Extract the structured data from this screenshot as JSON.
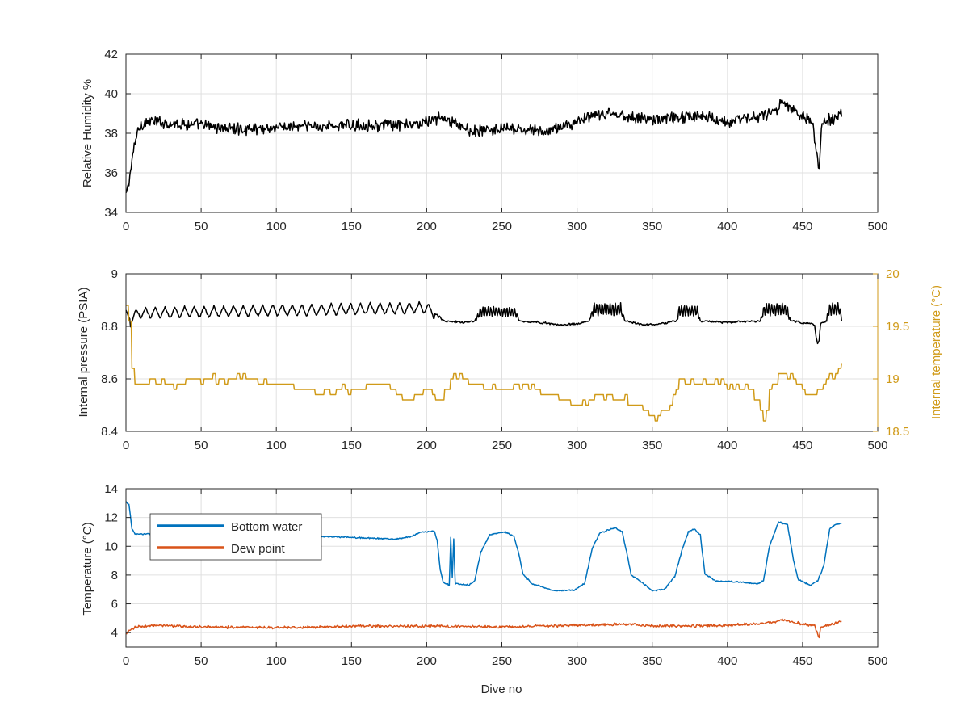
{
  "figure": {
    "background": "#ffffff",
    "grid_color": "#e0e0e0",
    "axis_color": "#262626"
  },
  "chart_data": [
    {
      "type": "line",
      "xlabel": "",
      "ylabel": "Relative Humidity %",
      "xlim": [
        0,
        500
      ],
      "ylim": [
        34,
        42
      ],
      "xticks": [
        "0",
        "50",
        "100",
        "150",
        "200",
        "250",
        "300",
        "350",
        "400",
        "450",
        "500"
      ],
      "yticks": [
        "34",
        "36",
        "38",
        "40",
        "42"
      ],
      "grid": true,
      "series": [
        {
          "color": "#000000",
          "noise": 0.45,
          "anchors": [
            [
              0,
              34.8
            ],
            [
              2,
              35.6
            ],
            [
              4,
              36.5
            ],
            [
              6,
              37.6
            ],
            [
              9,
              38.4
            ],
            [
              15,
              38.6
            ],
            [
              50,
              38.4
            ],
            [
              75,
              38.2
            ],
            [
              100,
              38.3
            ],
            [
              150,
              38.4
            ],
            [
              190,
              38.4
            ],
            [
              205,
              38.7
            ],
            [
              210,
              38.8
            ],
            [
              230,
              38.1
            ],
            [
              250,
              38.2
            ],
            [
              280,
              38.1
            ],
            [
              300,
              38.6
            ],
            [
              320,
              39.0
            ],
            [
              350,
              38.7
            ],
            [
              380,
              38.9
            ],
            [
              400,
              38.6
            ],
            [
              430,
              39.0
            ],
            [
              436,
              39.5
            ],
            [
              450,
              38.9
            ],
            [
              457,
              38.6
            ],
            [
              459,
              37.0
            ],
            [
              461,
              36.3
            ],
            [
              463,
              38.6
            ],
            [
              470,
              38.7
            ],
            [
              476,
              39.1
            ]
          ]
        }
      ]
    },
    {
      "type": "line",
      "xlabel": "",
      "ylabel": "Internal pressure (PSIA)",
      "ylabel_right": "Internal temperature (°C)",
      "xlim": [
        0,
        500
      ],
      "ylim": [
        8.4,
        9.0
      ],
      "ylim_right": [
        18.5,
        20.0
      ],
      "xticks": [
        "0",
        "50",
        "100",
        "150",
        "200",
        "250",
        "300",
        "350",
        "400",
        "450",
        "500"
      ],
      "yticks": [
        "8.4",
        "8.6",
        "8.8",
        "9"
      ],
      "yticks_right": [
        "18.5",
        "19",
        "19.5",
        "20"
      ],
      "grid": true,
      "right_axis_color": "#d09a18",
      "series": [
        {
          "color": "#000000",
          "axis": "left",
          "noise": 0.006,
          "osc": {
            "range": [
              3,
              205
            ],
            "amp": 0.022,
            "period": 6.5
          },
          "bumps": [
            [
              232,
              262,
              0.035
            ],
            [
              308,
              332,
              0.045
            ],
            [
              366,
              382,
              0.04
            ],
            [
              422,
              442,
              0.045
            ],
            [
              466,
              476,
              0.045
            ]
          ],
          "anchors": [
            [
              0,
              8.86
            ],
            [
              3,
              8.82
            ],
            [
              8,
              8.85
            ],
            [
              100,
              8.86
            ],
            [
              200,
              8.87
            ],
            [
              205,
              8.85
            ],
            [
              212,
              8.82
            ],
            [
              225,
              8.815
            ],
            [
              232,
              8.82
            ],
            [
              262,
              8.82
            ],
            [
              275,
              8.815
            ],
            [
              290,
              8.805
            ],
            [
              300,
              8.81
            ],
            [
              308,
              8.82
            ],
            [
              332,
              8.82
            ],
            [
              345,
              8.805
            ],
            [
              358,
              8.81
            ],
            [
              366,
              8.82
            ],
            [
              382,
              8.82
            ],
            [
              400,
              8.815
            ],
            [
              422,
              8.82
            ],
            [
              442,
              8.82
            ],
            [
              455,
              8.81
            ],
            [
              458,
              8.805
            ],
            [
              459,
              8.76
            ],
            [
              460,
              8.73
            ],
            [
              461,
              8.75
            ],
            [
              462,
              8.81
            ],
            [
              466,
              8.82
            ],
            [
              476,
              8.82
            ]
          ]
        },
        {
          "color": "#d09a18",
          "axis": "right",
          "noise": 0.06,
          "step": 1,
          "anchors": [
            [
              0,
              19.68
            ],
            [
              2,
              19.55
            ],
            [
              3,
              19.25
            ],
            [
              5,
              19.0
            ],
            [
              7,
              18.9
            ],
            [
              10,
              18.97
            ],
            [
              30,
              18.95
            ],
            [
              40,
              18.97
            ],
            [
              55,
              19.0
            ],
            [
              75,
              19.02
            ],
            [
              90,
              18.98
            ],
            [
              100,
              18.97
            ],
            [
              115,
              18.9
            ],
            [
              130,
              18.87
            ],
            [
              150,
              18.9
            ],
            [
              170,
              18.95
            ],
            [
              188,
              18.8
            ],
            [
              200,
              18.92
            ],
            [
              210,
              18.8
            ],
            [
              218,
              19.05
            ],
            [
              225,
              18.97
            ],
            [
              250,
              18.92
            ],
            [
              270,
              18.92
            ],
            [
              285,
              18.83
            ],
            [
              300,
              18.75
            ],
            [
              320,
              18.85
            ],
            [
              340,
              18.75
            ],
            [
              352,
              18.63
            ],
            [
              360,
              18.7
            ],
            [
              368,
              18.97
            ],
            [
              380,
              18.98
            ],
            [
              395,
              18.98
            ],
            [
              405,
              18.9
            ],
            [
              415,
              18.92
            ],
            [
              420,
              18.8
            ],
            [
              424,
              18.6
            ],
            [
              428,
              18.9
            ],
            [
              435,
              19.05
            ],
            [
              445,
              19.0
            ],
            [
              452,
              18.85
            ],
            [
              460,
              18.9
            ],
            [
              465,
              19.02
            ],
            [
              470,
              19.05
            ],
            [
              476,
              19.12
            ]
          ]
        }
      ]
    },
    {
      "type": "line",
      "xlabel": "Dive no",
      "ylabel": "Temperature (°C)",
      "xlim": [
        0,
        500
      ],
      "ylim": [
        3,
        14
      ],
      "xticks": [
        "0",
        "50",
        "100",
        "150",
        "200",
        "250",
        "300",
        "350",
        "400",
        "450",
        "500"
      ],
      "yticks": [
        "4",
        "6",
        "8",
        "10",
        "12",
        "14"
      ],
      "grid": true,
      "legend": {
        "position": "top-left"
      },
      "series": [
        {
          "name": "Bottom water",
          "color": "#0072bd",
          "noise": 0.07,
          "anchors": [
            [
              0,
              13.1
            ],
            [
              2,
              12.9
            ],
            [
              4,
              11.2
            ],
            [
              6,
              10.85
            ],
            [
              20,
              10.85
            ],
            [
              60,
              10.8
            ],
            [
              100,
              10.75
            ],
            [
              140,
              10.65
            ],
            [
              180,
              10.5
            ],
            [
              190,
              10.7
            ],
            [
              197,
              11.0
            ],
            [
              205,
              11.05
            ],
            [
              207,
              10.4
            ],
            [
              209,
              8.4
            ],
            [
              211,
              7.5
            ],
            [
              215,
              7.3
            ],
            [
              216,
              10.6
            ],
            [
              217,
              7.8
            ],
            [
              218,
              10.5
            ],
            [
              219,
              7.4
            ],
            [
              228,
              7.3
            ],
            [
              232,
              7.6
            ],
            [
              236,
              9.6
            ],
            [
              242,
              10.8
            ],
            [
              252,
              11.0
            ],
            [
              258,
              10.7
            ],
            [
              261,
              9.6
            ],
            [
              264,
              8.1
            ],
            [
              270,
              7.4
            ],
            [
              285,
              6.9
            ],
            [
              298,
              6.95
            ],
            [
              305,
              7.4
            ],
            [
              310,
              9.8
            ],
            [
              315,
              10.9
            ],
            [
              325,
              11.3
            ],
            [
              330,
              11.0
            ],
            [
              333,
              9.6
            ],
            [
              336,
              8.0
            ],
            [
              343,
              7.5
            ],
            [
              350,
              6.9
            ],
            [
              358,
              7.0
            ],
            [
              365,
              7.9
            ],
            [
              370,
              9.8
            ],
            [
              374,
              11.0
            ],
            [
              378,
              11.2
            ],
            [
              382,
              10.8
            ],
            [
              385,
              8.1
            ],
            [
              392,
              7.6
            ],
            [
              410,
              7.5
            ],
            [
              420,
              7.4
            ],
            [
              424,
              7.6
            ],
            [
              428,
              10.0
            ],
            [
              434,
              11.7
            ],
            [
              440,
              11.5
            ],
            [
              444,
              9.0
            ],
            [
              447,
              7.7
            ],
            [
              455,
              7.3
            ],
            [
              460,
              7.6
            ],
            [
              464,
              8.6
            ],
            [
              468,
              11.2
            ],
            [
              472,
              11.5
            ],
            [
              476,
              11.6
            ]
          ]
        },
        {
          "name": "Dew point",
          "color": "#d95319",
          "noise": 0.14,
          "anchors": [
            [
              0,
              3.9
            ],
            [
              2,
              4.1
            ],
            [
              6,
              4.4
            ],
            [
              20,
              4.5
            ],
            [
              50,
              4.4
            ],
            [
              100,
              4.35
            ],
            [
              150,
              4.45
            ],
            [
              200,
              4.45
            ],
            [
              250,
              4.4
            ],
            [
              300,
              4.5
            ],
            [
              330,
              4.6
            ],
            [
              350,
              4.45
            ],
            [
              400,
              4.5
            ],
            [
              430,
              4.7
            ],
            [
              436,
              4.9
            ],
            [
              450,
              4.6
            ],
            [
              458,
              4.5
            ],
            [
              460,
              3.9
            ],
            [
              461,
              3.6
            ],
            [
              462,
              4.4
            ],
            [
              470,
              4.6
            ],
            [
              476,
              4.8
            ]
          ]
        }
      ]
    }
  ]
}
